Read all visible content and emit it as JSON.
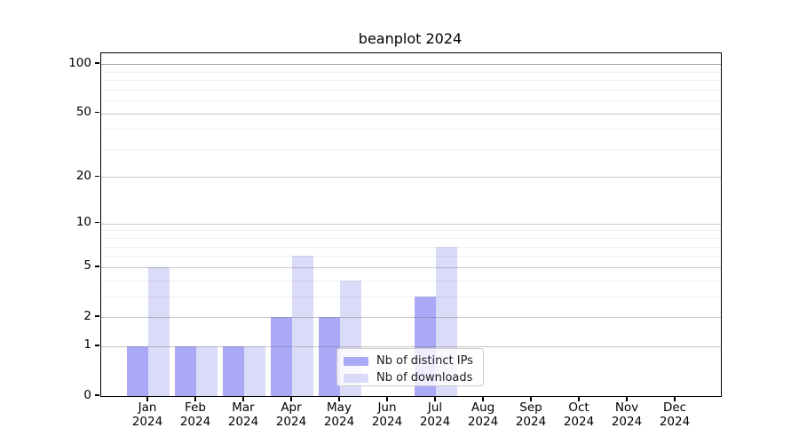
{
  "chart_data": {
    "type": "bar",
    "title": "beanplot 2024",
    "categories": [
      "Jan",
      "Feb",
      "Mar",
      "Apr",
      "May",
      "Jun",
      "Jul",
      "Aug",
      "Sep",
      "Oct",
      "Nov",
      "Dec"
    ],
    "category_year": "2024",
    "series": [
      {
        "name": "Nb of distinct IPs",
        "color": "#a9a9f7",
        "values": [
          1,
          1,
          1,
          2,
          2,
          0,
          3,
          0,
          0,
          0,
          0,
          0
        ]
      },
      {
        "name": "Nb of downloads",
        "color": "#dadaf9",
        "values": [
          5,
          1,
          1,
          6,
          4,
          0,
          7,
          0,
          0,
          0,
          0,
          0
        ]
      }
    ],
    "xlabel": "",
    "ylabel": "",
    "yscale": "log1p",
    "ylim": [
      0,
      116
    ],
    "yticks": [
      0,
      1,
      2,
      5,
      10,
      20,
      50,
      100
    ],
    "minor_gridlines": [
      3,
      4,
      6,
      7,
      8,
      9,
      30,
      40,
      60,
      70,
      80,
      90
    ],
    "grid": true,
    "legend_position": "lower-center"
  }
}
